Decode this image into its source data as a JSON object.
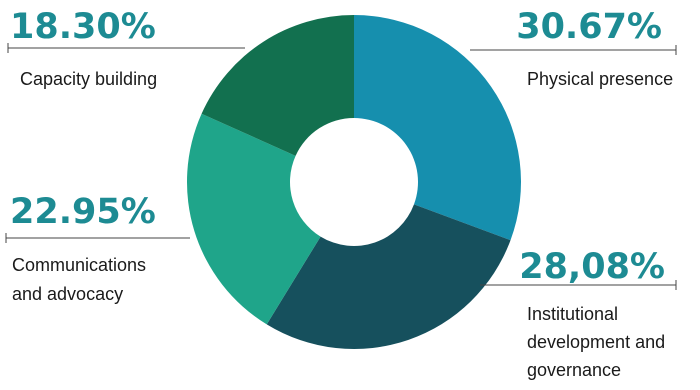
{
  "chart_data": {
    "type": "pie",
    "donut": true,
    "title": "",
    "legend": "none",
    "slices": [
      {
        "name": "Physical presence",
        "value": 30.67,
        "display": "30.67%",
        "label_lines": [
          "Physical presence"
        ],
        "color": "#168fae"
      },
      {
        "name": "Institutional development and governance",
        "value": 28.08,
        "display": "28,08%",
        "label_lines": [
          "Institutional",
          "development and",
          "governance"
        ],
        "color": "#16505d"
      },
      {
        "name": "Communications and advocacy",
        "value": 22.95,
        "display": "22.95%",
        "label_lines": [
          "Communications",
          "and advocacy"
        ],
        "color": "#1fa58a"
      },
      {
        "name": "Capacity building",
        "value": 18.3,
        "display": "18.30%",
        "label_lines": [
          "Capacity building"
        ],
        "color": "#12704f"
      }
    ]
  },
  "colors": {
    "percent_text": "#1d8b93",
    "label_text": "#1a1a1a",
    "leader_line": "#444444"
  }
}
